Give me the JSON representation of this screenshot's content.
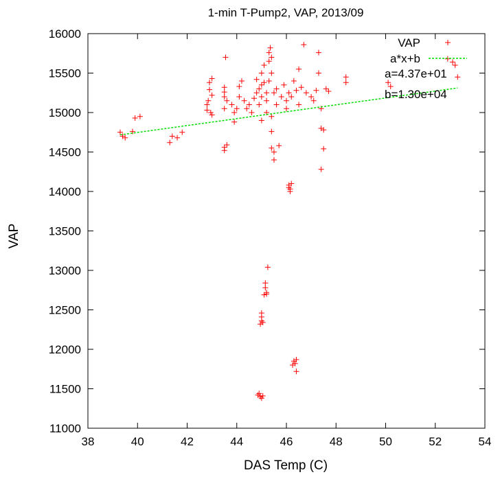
{
  "chart_data": {
    "type": "scatter",
    "title": "1-min T-Pump2, VAP, 2013/09",
    "xlabel": "DAS Temp (C)",
    "ylabel": "VAP",
    "xlim": [
      38,
      54
    ],
    "ylim": [
      11000,
      16000
    ],
    "xticks": [
      38,
      40,
      42,
      44,
      46,
      48,
      50,
      52,
      54
    ],
    "yticks": [
      11000,
      11500,
      12000,
      12500,
      13000,
      13500,
      14000,
      14500,
      15000,
      15500,
      16000
    ],
    "grid": false,
    "legend_position": "top-right",
    "colors": {
      "points": "#ff0000",
      "fit": "#00dd00"
    },
    "series": [
      {
        "name": "VAP",
        "marker": "+",
        "points": [
          [
            39.3,
            14750
          ],
          [
            39.4,
            14700
          ],
          [
            39.5,
            14680
          ],
          [
            39.8,
            14760
          ],
          [
            39.9,
            14930
          ],
          [
            40.1,
            14950
          ],
          [
            41.3,
            14620
          ],
          [
            41.4,
            14700
          ],
          [
            41.6,
            14680
          ],
          [
            41.8,
            14750
          ],
          [
            42.8,
            15030
          ],
          [
            42.8,
            15100
          ],
          [
            42.85,
            15150
          ],
          [
            42.9,
            15380
          ],
          [
            42.9,
            15290
          ],
          [
            42.95,
            15000
          ],
          [
            43.0,
            15220
          ],
          [
            43.0,
            15430
          ],
          [
            43.0,
            14970
          ],
          [
            43.5,
            15320
          ],
          [
            43.5,
            15260
          ],
          [
            43.5,
            15200
          ],
          [
            43.5,
            15050
          ],
          [
            43.5,
            14560
          ],
          [
            43.5,
            14520
          ],
          [
            43.55,
            15700
          ],
          [
            43.6,
            15150
          ],
          [
            43.6,
            14590
          ],
          [
            43.8,
            15100
          ],
          [
            43.9,
            15000
          ],
          [
            43.9,
            14880
          ],
          [
            44.0,
            15050
          ],
          [
            44.1,
            15200
          ],
          [
            44.1,
            15330
          ],
          [
            44.2,
            15400
          ],
          [
            44.3,
            15150
          ],
          [
            44.4,
            15050
          ],
          [
            44.5,
            15100
          ],
          [
            44.6,
            15000
          ],
          [
            44.7,
            15180
          ],
          [
            44.8,
            15250
          ],
          [
            44.8,
            15420
          ],
          [
            44.9,
            15300
          ],
          [
            44.9,
            15100
          ],
          [
            45.0,
            15350
          ],
          [
            45.0,
            15200
          ],
          [
            45.0,
            14900
          ],
          [
            45.0,
            15500
          ],
          [
            45.1,
            15600
          ],
          [
            45.1,
            15380
          ],
          [
            45.2,
            15250
          ],
          [
            45.2,
            15150
          ],
          [
            45.2,
            15000
          ],
          [
            45.3,
            15400
          ],
          [
            45.3,
            15650
          ],
          [
            45.3,
            15760
          ],
          [
            45.35,
            15820
          ],
          [
            45.4,
            15700
          ],
          [
            45.4,
            15500
          ],
          [
            45.4,
            14950
          ],
          [
            45.4,
            14760
          ],
          [
            45.4,
            14550
          ],
          [
            45.5,
            14500
          ],
          [
            45.5,
            14400
          ],
          [
            45.5,
            15250
          ],
          [
            45.6,
            15300
          ],
          [
            45.6,
            15100
          ],
          [
            45.7,
            14580
          ],
          [
            45.8,
            15200
          ],
          [
            45.9,
            15350
          ],
          [
            46.0,
            15150
          ],
          [
            46.0,
            15050
          ],
          [
            46.1,
            15250
          ],
          [
            46.2,
            15200
          ],
          [
            46.3,
            15400
          ],
          [
            46.4,
            15280
          ],
          [
            46.5,
            15550
          ],
          [
            46.5,
            15100
          ],
          [
            46.6,
            15320
          ],
          [
            46.7,
            15860
          ],
          [
            46.8,
            15250
          ],
          [
            47.0,
            15200
          ],
          [
            47.1,
            15150
          ],
          [
            47.2,
            15280
          ],
          [
            47.3,
            15500
          ],
          [
            47.3,
            15760
          ],
          [
            47.4,
            15050
          ],
          [
            47.4,
            14800
          ],
          [
            47.5,
            14780
          ],
          [
            47.5,
            14540
          ],
          [
            47.4,
            14280
          ],
          [
            47.6,
            15300
          ],
          [
            47.7,
            15270
          ],
          [
            48.4,
            15450
          ],
          [
            48.4,
            15380
          ],
          [
            50.1,
            15380
          ],
          [
            50.2,
            15330
          ],
          [
            52.5,
            15680
          ],
          [
            52.7,
            15640
          ],
          [
            52.8,
            15600
          ],
          [
            52.9,
            15450
          ],
          [
            46.1,
            14080
          ],
          [
            46.1,
            14050
          ],
          [
            46.15,
            14030
          ],
          [
            46.2,
            14100
          ],
          [
            46.15,
            14000
          ],
          [
            45.25,
            13040
          ],
          [
            45.15,
            12840
          ],
          [
            45.15,
            12780
          ],
          [
            45.2,
            12720
          ],
          [
            45.2,
            12700
          ],
          [
            45.1,
            12690
          ],
          [
            45.0,
            12460
          ],
          [
            45.0,
            12410
          ],
          [
            45.0,
            12360
          ],
          [
            45.05,
            12340
          ],
          [
            44.95,
            12320
          ],
          [
            46.3,
            11850
          ],
          [
            46.35,
            11820
          ],
          [
            46.4,
            11870
          ],
          [
            46.25,
            11800
          ],
          [
            46.4,
            11720
          ],
          [
            44.9,
            11440
          ],
          [
            44.95,
            11400
          ],
          [
            44.85,
            11420
          ],
          [
            45.0,
            11380
          ],
          [
            45.05,
            11410
          ]
        ]
      },
      {
        "name": "a*x+b",
        "fit": {
          "a": 43.7,
          "b": 13000
        },
        "x_range": [
          39.3,
          52.9
        ]
      }
    ],
    "annotations": [
      "a=4.37e+01",
      "b=1.30e+04"
    ]
  }
}
